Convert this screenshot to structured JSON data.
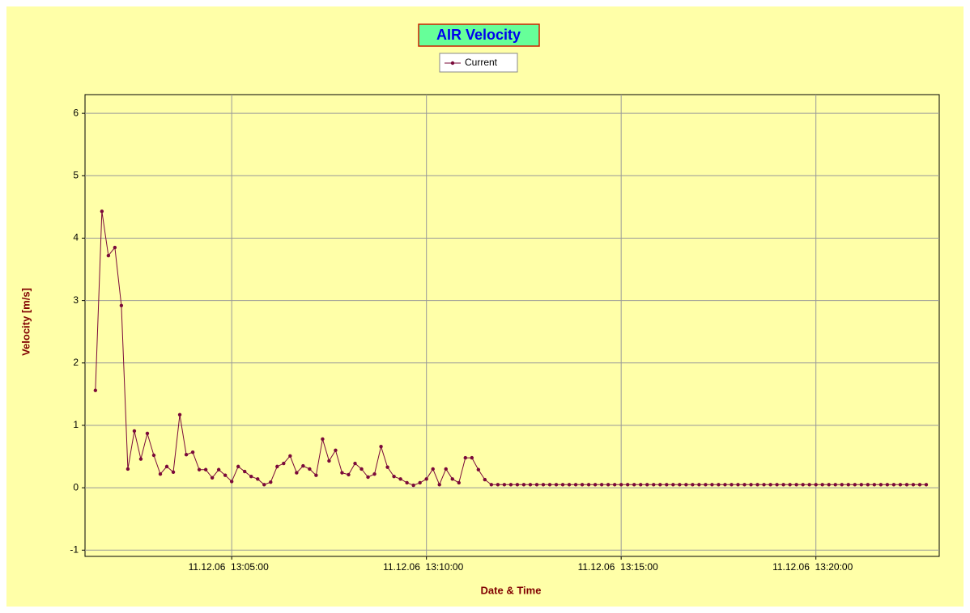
{
  "chart_data": {
    "type": "line",
    "title": "AIR Velocity",
    "x_label": "Date & Time",
    "y_label": "Velocity [m/s]",
    "x": [
      "11.12.06 13:01:30",
      "11.12.06 13:01:40",
      "11.12.06 13:01:50",
      "11.12.06 13:02:00",
      "11.12.06 13:02:10",
      "11.12.06 13:02:20",
      "11.12.06 13:02:30",
      "11.12.06 13:02:40",
      "11.12.06 13:02:50",
      "11.12.06 13:03:00",
      "11.12.06 13:03:10",
      "11.12.06 13:03:20",
      "11.12.06 13:03:30",
      "11.12.06 13:03:40",
      "11.12.06 13:03:50",
      "11.12.06 13:04:00",
      "11.12.06 13:04:10",
      "11.12.06 13:04:20",
      "11.12.06 13:04:30",
      "11.12.06 13:04:40",
      "11.12.06 13:04:50",
      "11.12.06 13:05:00",
      "11.12.06 13:05:10",
      "11.12.06 13:05:20",
      "11.12.06 13:05:30",
      "11.12.06 13:05:40",
      "11.12.06 13:05:50",
      "11.12.06 13:06:00",
      "11.12.06 13:06:10",
      "11.12.06 13:06:20",
      "11.12.06 13:06:30",
      "11.12.06 13:06:40",
      "11.12.06 13:06:50",
      "11.12.06 13:07:00",
      "11.12.06 13:07:10",
      "11.12.06 13:07:20",
      "11.12.06 13:07:30",
      "11.12.06 13:07:40",
      "11.12.06 13:07:50",
      "11.12.06 13:08:00",
      "11.12.06 13:08:10",
      "11.12.06 13:08:20",
      "11.12.06 13:08:30",
      "11.12.06 13:08:40",
      "11.12.06 13:08:50",
      "11.12.06 13:09:00",
      "11.12.06 13:09:10",
      "11.12.06 13:09:20",
      "11.12.06 13:09:30",
      "11.12.06 13:09:40",
      "11.12.06 13:09:50",
      "11.12.06 13:10:00",
      "11.12.06 13:10:10",
      "11.12.06 13:10:20",
      "11.12.06 13:10:30",
      "11.12.06 13:10:40",
      "11.12.06 13:10:50",
      "11.12.06 13:11:00",
      "11.12.06 13:11:10",
      "11.12.06 13:11:20",
      "11.12.06 13:11:30",
      "11.12.06 13:11:40",
      "11.12.06 13:11:50",
      "11.12.06 13:12:00",
      "11.12.06 13:12:10",
      "11.12.06 13:12:20",
      "11.12.06 13:12:30",
      "11.12.06 13:12:40",
      "11.12.06 13:12:50",
      "11.12.06 13:13:00",
      "11.12.06 13:13:10",
      "11.12.06 13:13:20",
      "11.12.06 13:13:30",
      "11.12.06 13:13:40",
      "11.12.06 13:13:50",
      "11.12.06 13:14:00",
      "11.12.06 13:14:10",
      "11.12.06 13:14:20",
      "11.12.06 13:14:30",
      "11.12.06 13:14:40",
      "11.12.06 13:14:50",
      "11.12.06 13:15:00",
      "11.12.06 13:15:10",
      "11.12.06 13:15:20",
      "11.12.06 13:15:30",
      "11.12.06 13:15:40",
      "11.12.06 13:15:50",
      "11.12.06 13:16:00",
      "11.12.06 13:16:10",
      "11.12.06 13:16:20",
      "11.12.06 13:16:30",
      "11.12.06 13:16:40",
      "11.12.06 13:16:50",
      "11.12.06 13:17:00",
      "11.12.06 13:17:10",
      "11.12.06 13:17:20",
      "11.12.06 13:17:30",
      "11.12.06 13:17:40",
      "11.12.06 13:17:50",
      "11.12.06 13:18:00",
      "11.12.06 13:18:10",
      "11.12.06 13:18:20",
      "11.12.06 13:18:30",
      "11.12.06 13:18:40",
      "11.12.06 13:18:50",
      "11.12.06 13:19:00",
      "11.12.06 13:19:10",
      "11.12.06 13:19:20",
      "11.12.06 13:19:30",
      "11.12.06 13:19:40",
      "11.12.06 13:19:50",
      "11.12.06 13:20:00",
      "11.12.06 13:20:10",
      "11.12.06 13:20:20",
      "11.12.06 13:20:30",
      "11.12.06 13:20:40",
      "11.12.06 13:20:50",
      "11.12.06 13:21:00",
      "11.12.06 13:21:10",
      "11.12.06 13:21:20",
      "11.12.06 13:21:30",
      "11.12.06 13:21:40",
      "11.12.06 13:21:50",
      "11.12.06 13:22:00",
      "11.12.06 13:22:10",
      "11.12.06 13:22:20",
      "11.12.06 13:22:30",
      "11.12.06 13:22:40",
      "11.12.06 13:22:50"
    ],
    "series": [
      {
        "name": "Current",
        "color": "#7a0a3a",
        "values": [
          1.56,
          4.43,
          3.72,
          3.85,
          2.92,
          0.3,
          0.91,
          0.46,
          0.87,
          0.52,
          0.22,
          0.34,
          0.25,
          1.17,
          0.53,
          0.57,
          0.29,
          0.29,
          0.16,
          0.29,
          0.2,
          0.1,
          0.34,
          0.26,
          0.18,
          0.14,
          0.05,
          0.09,
          0.34,
          0.39,
          0.51,
          0.24,
          0.35,
          0.3,
          0.2,
          0.78,
          0.43,
          0.6,
          0.24,
          0.21,
          0.39,
          0.3,
          0.17,
          0.22,
          0.66,
          0.33,
          0.18,
          0.14,
          0.08,
          0.04,
          0.08,
          0.14,
          0.3,
          0.05,
          0.3,
          0.14,
          0.08,
          0.48,
          0.48,
          0.29,
          0.13,
          0.05,
          0.05,
          0.05,
          0.05,
          0.05,
          0.05,
          0.05,
          0.05,
          0.05,
          0.05,
          0.05,
          0.05,
          0.05,
          0.05,
          0.05,
          0.05,
          0.05,
          0.05,
          0.05,
          0.05,
          0.05,
          0.05,
          0.05,
          0.05,
          0.05,
          0.05,
          0.05,
          0.05,
          0.05,
          0.05,
          0.05,
          0.05,
          0.05,
          0.05,
          0.05,
          0.05,
          0.05,
          0.05,
          0.05,
          0.05,
          0.05,
          0.05,
          0.05,
          0.05,
          0.05,
          0.05,
          0.05,
          0.05,
          0.05,
          0.05,
          0.05,
          0.05,
          0.05,
          0.05,
          0.05,
          0.05,
          0.05,
          0.05,
          0.05,
          0.05,
          0.05,
          0.05,
          0.05,
          0.05,
          0.05,
          0.05,
          0.05,
          0.05
        ]
      }
    ],
    "xlim": [
      "11.12.06 13:01:14",
      "11.12.06 13:23:10"
    ],
    "xticks": [
      {
        "value": "11.12.06 13:05:00",
        "label": "11.12.06  13:05:00"
      },
      {
        "value": "11.12.06 13:10:00",
        "label": "11.12.06  13:10:00"
      },
      {
        "value": "11.12.06 13:15:00",
        "label": "11.12.06  13:15:00"
      },
      {
        "value": "11.12.06 13:20:00",
        "label": "11.12.06  13:20:00"
      }
    ],
    "ylim": [
      -1.1,
      6.3
    ],
    "yticks": [
      -1,
      0,
      1,
      2,
      3,
      4,
      5,
      6
    ],
    "grid": true
  }
}
